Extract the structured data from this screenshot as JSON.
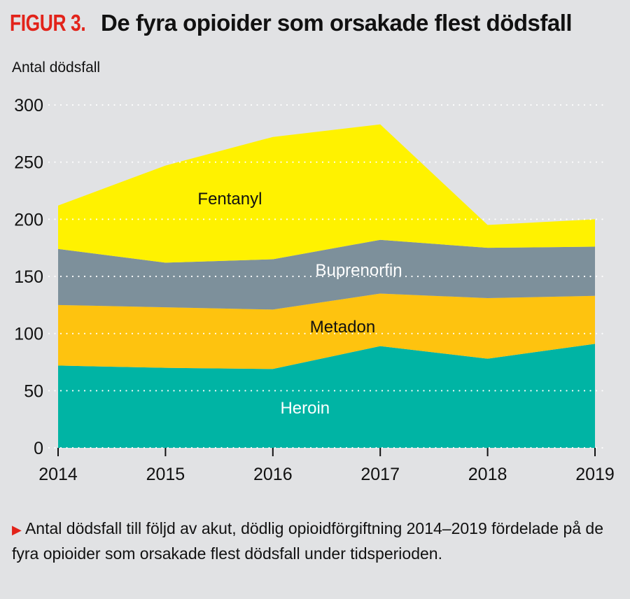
{
  "header": {
    "figure_label": "FIGUR 3.",
    "title": "De fyra opioider som orsakade flest dödsfall"
  },
  "caption": {
    "marker": "▶",
    "text": "Antal dödsfall till följd av akut, dödlig opioidförgiftning 2014–2019 fördelade på de fyra opioider som orsakade flest dödsfall under tidsperioden."
  },
  "chart_data": {
    "type": "area",
    "stacked": true,
    "title": "De fyra opioider som orsakade flest dödsfall",
    "xlabel": "",
    "ylabel": "Antal dödsfall",
    "x": [
      "2014",
      "2015",
      "2016",
      "2017",
      "2018",
      "2019"
    ],
    "ylim": [
      0,
      300
    ],
    "yticks": [
      0,
      50,
      100,
      150,
      200,
      250,
      300
    ],
    "grid": true,
    "series": [
      {
        "name": "Heroin",
        "values": [
          72,
          70,
          69,
          89,
          78,
          91
        ],
        "color": "#00b4a4",
        "label_color": "#ffffff"
      },
      {
        "name": "Metadon",
        "values": [
          53,
          53,
          52,
          46,
          53,
          42
        ],
        "color": "#fec30f",
        "label_color": "#111111"
      },
      {
        "name": "Buprenorfin",
        "values": [
          49,
          39,
          44,
          47,
          44,
          43
        ],
        "color": "#7d909b",
        "label_color": "#ffffff"
      },
      {
        "name": "Fentanyl",
        "values": [
          38,
          85,
          107,
          101,
          20,
          24
        ],
        "color": "#fff200",
        "label_color": "#111111"
      }
    ]
  }
}
